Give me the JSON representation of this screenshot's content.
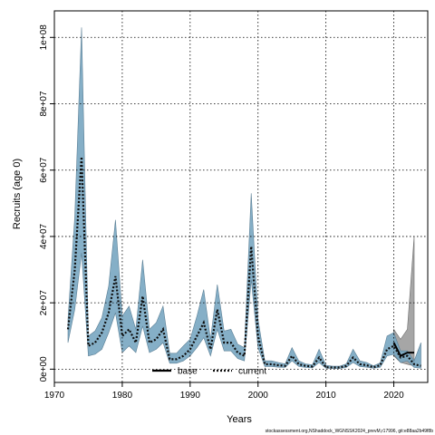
{
  "chart_data": {
    "type": "line",
    "title": "",
    "xlabel": "Years",
    "ylabel": "Recruits (age 0)",
    "xlim": [
      1970,
      2025
    ],
    "ylim": [
      -4000000,
      108000000
    ],
    "x_ticks": [
      1970,
      1980,
      1990,
      2000,
      2010,
      2020
    ],
    "y_ticks": [
      0,
      20000000,
      40000000,
      60000000,
      80000000,
      100000000
    ],
    "y_tick_labels": [
      "0e+00",
      "2e+07",
      "4e+07",
      "6e+07",
      "8e+07",
      "1e+08"
    ],
    "grid": true,
    "legend_position": "bottom-center",
    "caption": "stockassessment.org,NShaddock_WGNSSK2024_prevM,r17996, git:e88aa2b49f8b",
    "colors": {
      "base_line": "#000000",
      "current_line": "#1f5f80",
      "current_band": "#7ba8c2",
      "base_band": "#a6a6a6",
      "grid": "#000000"
    },
    "series": [
      {
        "name": "base",
        "style": "solid",
        "x": [
          2020,
          2021,
          2022,
          2023
        ],
        "y": [
          8000000,
          4000000,
          5000000,
          5000000
        ],
        "lower": [
          4000000,
          2000000,
          1500000,
          1000000
        ],
        "upper": [
          12000000,
          9000000,
          12000000,
          40000000
        ]
      },
      {
        "name": "current",
        "style": "dotted",
        "x": [
          1972,
          1973,
          1974,
          1975,
          1976,
          1977,
          1978,
          1979,
          1980,
          1981,
          1982,
          1983,
          1984,
          1985,
          1986,
          1987,
          1988,
          1989,
          1990,
          1991,
          1992,
          1993,
          1994,
          1995,
          1996,
          1997,
          1998,
          1999,
          2000,
          2001,
          2002,
          2003,
          2004,
          2005,
          2006,
          2007,
          2008,
          2009,
          2010,
          2011,
          2012,
          2013,
          2014,
          2015,
          2016,
          2017,
          2018,
          2019,
          2020,
          2021,
          2022,
          2023,
          2024
        ],
        "y": [
          12000000,
          30000000,
          64000000,
          7000000,
          8000000,
          11000000,
          17000000,
          28000000,
          10000000,
          12000000,
          8000000,
          22000000,
          8000000,
          9000000,
          12000000,
          3000000,
          3000000,
          4000000,
          6000000,
          10000000,
          14000000,
          6000000,
          18000000,
          8000000,
          8000000,
          5000000,
          4000000,
          37000000,
          10000000,
          1500000,
          1500000,
          1200000,
          1000000,
          4000000,
          1500000,
          1000000,
          800000,
          3500000,
          600000,
          500000,
          500000,
          1000000,
          3500000,
          1500000,
          1200000,
          600000,
          1200000,
          6000000,
          7000000,
          3500000,
          4000000,
          1500000,
          1000000
        ],
        "lower": [
          8000000,
          18000000,
          35000000,
          4000000,
          4500000,
          6000000,
          11000000,
          17000000,
          5000000,
          7000000,
          5000000,
          13000000,
          5000000,
          6000000,
          8000000,
          1800000,
          1800000,
          2500000,
          4000000,
          6500000,
          9500000,
          4000000,
          12000000,
          5500000,
          5500000,
          3200000,
          2500000,
          27000000,
          6500000,
          800000,
          800000,
          600000,
          500000,
          2500000,
          800000,
          500000,
          400000,
          2000000,
          300000,
          200000,
          200000,
          500000,
          2000000,
          800000,
          600000,
          300000,
          600000,
          4000000,
          4500000,
          2000000,
          2500000,
          500000,
          300000
        ],
        "upper": [
          15000000,
          46000000,
          103000000,
          10000000,
          11500000,
          15500000,
          25000000,
          45000000,
          16000000,
          19000000,
          12000000,
          33000000,
          12000000,
          14000000,
          19000000,
          4800000,
          4800000,
          7000000,
          9000000,
          16000000,
          24000000,
          9000000,
          25500000,
          11500000,
          12000000,
          7500000,
          6500000,
          53000000,
          15000000,
          2500000,
          2500000,
          2000000,
          1600000,
          6500000,
          2500000,
          1600000,
          1300000,
          6000000,
          1200000,
          900000,
          900000,
          1600000,
          6000000,
          2500000,
          2000000,
          1000000,
          1900000,
          10000000,
          11000000,
          5500000,
          5500000,
          2500000,
          8000000
        ]
      }
    ]
  }
}
